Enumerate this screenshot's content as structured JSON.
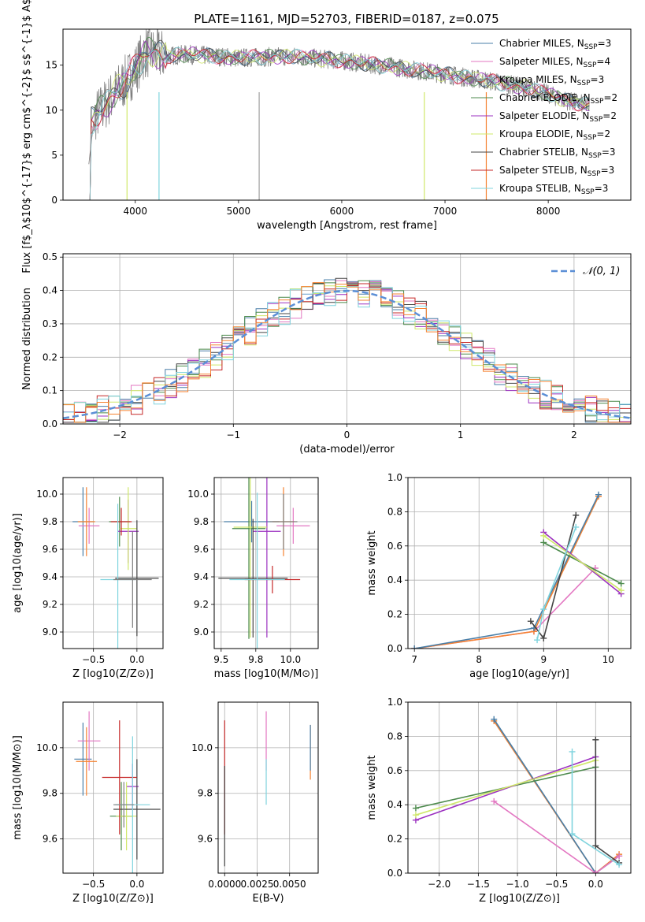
{
  "figure_title": "PLATE=1161, MJD=52703, FIBERID=0187, z=0.075",
  "colors": {
    "Chabrier MILES": "#4a7fa8",
    "Salpeter MILES": "#e377c2",
    "Kroupa MILES": "#7f7f7f",
    "Chabrier ELODIE": "#4c8a4c",
    "Salpeter ELODIE": "#9b30c0",
    "Kroupa ELODIE": "#cfe86a",
    "Chabrier STELIB": "#444444",
    "Salpeter STELIB": "#c62828",
    "Kroupa STELIB": "#80d4de",
    "gauss": "#5b8fd6",
    "orange": "#f58231"
  },
  "chart_data": [
    {
      "id": "spectrum",
      "type": "line",
      "title": "PLATE=1161, MJD=52703, FIBERID=0187, z=0.075",
      "xlabel": "wavelength [Angstrom, rest frame]",
      "ylabel": "Flux [f$_λ$10$^{-17}$ erg cm$^{-2}$ s$^{-1}$ A$^{-1}$]",
      "xlim": [
        3300,
        8800
      ],
      "ylim": [
        0,
        19
      ],
      "xticks": [
        4000,
        5000,
        6000,
        7000,
        8000
      ],
      "yticks": [
        0,
        5,
        10,
        15
      ],
      "legend": [
        {
          "name": "Chabrier MILES",
          "n": "3"
        },
        {
          "name": "Salpeter MILES",
          "n": "4"
        },
        {
          "name": "Kroupa MILES",
          "n": "3"
        },
        {
          "name": "Chabrier ELODIE",
          "n": "2"
        },
        {
          "name": "Salpeter ELODIE",
          "n": "2"
        },
        {
          "name": "Kroupa ELODIE",
          "n": "2"
        },
        {
          "name": "Chabrier STELIB",
          "n": "3"
        },
        {
          "name": "Salpeter STELIB",
          "n": "3"
        },
        {
          "name": "Kroupa STELIB",
          "n": "3"
        }
      ],
      "data_profile": {
        "x": [
          3550,
          3700,
          3850,
          4000,
          4100,
          4300,
          4500,
          5000,
          5500,
          6000,
          6500,
          7000,
          7400,
          7800,
          8200,
          8400
        ],
        "y": [
          8.5,
          10.5,
          12.5,
          14.5,
          16.5,
          16.0,
          16.2,
          15.8,
          16.0,
          15.5,
          14.8,
          14.0,
          13.3,
          12.5,
          11.0,
          10.5
        ]
      }
    },
    {
      "id": "residuals",
      "type": "line",
      "xlabel": "(data-model)/error",
      "ylabel": "Normed distribution",
      "xlim": [
        -2.5,
        2.5
      ],
      "ylim": [
        0,
        0.51
      ],
      "xticks": [
        -2,
        -1,
        0,
        1,
        2
      ],
      "yticks": [
        0.0,
        0.1,
        0.2,
        0.3,
        0.4,
        0.5
      ],
      "legend_label": "𝒩(0, 1)",
      "gauss_sigma": 1.0
    },
    {
      "id": "age_vs_Z",
      "type": "scatter",
      "xlabel": "Z [log10(Z/Z⊙)]",
      "ylabel": "age  [log10(age/yr)]",
      "xlim": [
        -0.85,
        0.3
      ],
      "ylim": [
        8.88,
        10.12
      ],
      "xticks": [
        -0.5,
        0.0
      ],
      "yticks": [
        9.0,
        9.2,
        9.4,
        9.6,
        9.8,
        10.0
      ],
      "points": [
        {
          "s": "Chabrier MILES",
          "x": -0.62,
          "y": 9.8,
          "xe": 0.12,
          "ye": 0.25
        },
        {
          "s": "Salpeter MILES",
          "x": -0.55,
          "y": 9.77,
          "xe": 0.12,
          "ye": 0.13
        },
        {
          "s": "orange",
          "x": -0.58,
          "y": 9.8,
          "xe": 0.1,
          "ye": 0.25
        },
        {
          "s": "Chabrier ELODIE",
          "x": -0.2,
          "y": 9.8,
          "xe": 0.12,
          "ye": 0.18
        },
        {
          "s": "Salpeter ELODIE",
          "x": -0.1,
          "y": 9.73,
          "xe": 0.12,
          "ye": 0.23
        },
        {
          "s": "Kroupa ELODIE",
          "x": -0.1,
          "y": 9.75,
          "xe": 0.1,
          "ye": 0.3
        },
        {
          "s": "Chabrier STELIB",
          "x": 0.0,
          "y": 9.39,
          "xe": 0.25,
          "ye": 0.42
        },
        {
          "s": "Salpeter STELIB",
          "x": -0.18,
          "y": 9.8,
          "xe": 0.12,
          "ye": 0.1
        },
        {
          "s": "Kroupa STELIB",
          "x": -0.22,
          "y": 9.38,
          "xe": 0.2,
          "ye": 0.55
        },
        {
          "s": "Kroupa MILES",
          "x": -0.05,
          "y": 9.38,
          "xe": 0.22,
          "ye": 0.35
        }
      ]
    },
    {
      "id": "age_vs_mass",
      "type": "scatter",
      "xlabel": "mass [log10(M/M⊙)]",
      "ylabel": "",
      "xlim": [
        9.45,
        10.2
      ],
      "ylim": [
        8.88,
        10.12
      ],
      "xticks": [
        9.5,
        9.75,
        10.0
      ],
      "yticks": [
        9.0,
        9.2,
        9.4,
        9.6,
        9.8,
        10.0
      ],
      "points": [
        {
          "s": "Chabrier MILES",
          "x": 9.72,
          "y": 9.8,
          "xe": 0.2,
          "ye": 0.15
        },
        {
          "s": "Salpeter MILES",
          "x": 10.02,
          "y": 9.77,
          "xe": 0.12,
          "ye": 0.13
        },
        {
          "s": "orange",
          "x": 9.95,
          "y": 9.8,
          "xe": 0.08,
          "ye": 0.25
        },
        {
          "s": "Chabrier ELODIE",
          "x": 9.7,
          "y": 9.75,
          "xe": 0.12,
          "ye": 0.8
        },
        {
          "s": "Salpeter ELODIE",
          "x": 9.83,
          "y": 9.73,
          "xe": 0.1,
          "ye": 0.77
        },
        {
          "s": "Kroupa ELODIE",
          "x": 9.71,
          "y": 9.76,
          "xe": 0.12,
          "ye": 0.8
        },
        {
          "s": "Chabrier STELIB",
          "x": 9.73,
          "y": 9.39,
          "xe": 0.25,
          "ye": 0.43
        },
        {
          "s": "Salpeter STELIB",
          "x": 9.87,
          "y": 9.38,
          "xe": 0.2,
          "ye": 0.1
        },
        {
          "s": "Kroupa STELIB",
          "x": 9.76,
          "y": 9.38,
          "xe": 0.2,
          "ye": 0.63
        },
        {
          "s": "Kroupa MILES",
          "x": 9.95,
          "y": 9.8,
          "xe": 0.1,
          "ye": 0.2
        }
      ]
    },
    {
      "id": "weight_vs_age",
      "type": "line",
      "xlabel": "age  [log10(age/yr)]",
      "ylabel": "mass weight",
      "xlim": [
        6.9,
        10.35
      ],
      "ylim": [
        0,
        1.0
      ],
      "xticks": [
        7,
        8,
        9,
        10
      ],
      "yticks": [
        0.0,
        0.2,
        0.4,
        0.6,
        0.8,
        1.0
      ],
      "series": [
        {
          "s": "Salpeter MILES",
          "x": [
            7.0,
            8.85,
            9.8
          ],
          "y": [
            0.0,
            0.1,
            0.47
          ]
        },
        {
          "s": "orange",
          "x": [
            7.0,
            8.85,
            9.85
          ],
          "y": [
            0.0,
            0.1,
            0.89
          ]
        },
        {
          "s": "Chabrier MILES",
          "x": [
            7.0,
            8.85,
            9.85
          ],
          "y": [
            0.0,
            0.12,
            0.9
          ]
        },
        {
          "s": "Chabrier ELODIE",
          "x": [
            9.0,
            10.2
          ],
          "y": [
            0.62,
            0.38
          ]
        },
        {
          "s": "Salpeter ELODIE",
          "x": [
            9.0,
            10.2
          ],
          "y": [
            0.68,
            0.32
          ]
        },
        {
          "s": "Kroupa ELODIE",
          "x": [
            9.0,
            10.2
          ],
          "y": [
            0.66,
            0.34
          ]
        },
        {
          "s": "Chabrier STELIB",
          "x": [
            8.8,
            9.0,
            9.5
          ],
          "y": [
            0.16,
            0.06,
            0.78
          ]
        },
        {
          "s": "Kroupa STELIB",
          "x": [
            8.9,
            9.0,
            9.5
          ],
          "y": [
            0.05,
            0.23,
            0.71
          ]
        }
      ]
    },
    {
      "id": "mass_vs_Z",
      "type": "scatter",
      "xlabel": "Z [log10(Z/Z⊙)]",
      "ylabel": "mass [log10(M/M⊙)]",
      "xlim": [
        -0.85,
        0.3
      ],
      "ylim": [
        9.45,
        10.2
      ],
      "xticks": [
        -0.5,
        0.0
      ],
      "yticks": [
        9.6,
        9.8,
        10.0
      ],
      "points": [
        {
          "s": "Chabrier MILES",
          "x": -0.62,
          "y": 9.95,
          "xe": 0.1,
          "ye": 0.16
        },
        {
          "s": "Salpeter MILES",
          "x": -0.55,
          "y": 10.03,
          "xe": 0.13,
          "ye": 0.13
        },
        {
          "s": "orange",
          "x": -0.58,
          "y": 9.94,
          "xe": 0.12,
          "ye": 0.15
        },
        {
          "s": "Chabrier ELODIE",
          "x": -0.18,
          "y": 9.7,
          "xe": 0.13,
          "ye": 0.15
        },
        {
          "s": "Salpeter ELODIE",
          "x": -0.05,
          "y": 9.83,
          "xe": 0.07,
          "ye": 0.1
        },
        {
          "s": "Kroupa ELODIE",
          "x": -0.12,
          "y": 9.7,
          "xe": 0.12,
          "ye": 0.15
        },
        {
          "s": "Chabrier STELIB",
          "x": 0.0,
          "y": 9.73,
          "xe": 0.27,
          "ye": 0.22
        },
        {
          "s": "Salpeter STELIB",
          "x": -0.2,
          "y": 9.87,
          "xe": 0.2,
          "ye": 0.25
        },
        {
          "s": "Kroupa STELIB",
          "x": -0.05,
          "y": 9.75,
          "xe": 0.2,
          "ye": 0.3
        },
        {
          "s": "Kroupa MILES",
          "x": -0.15,
          "y": 9.75,
          "xe": 0.12,
          "ye": 0.1
        }
      ]
    },
    {
      "id": "mass_vs_ebv",
      "type": "scatter",
      "xlabel": "E(B-V)",
      "ylabel": "",
      "xlim": [
        -0.0005,
        0.0072
      ],
      "ylim": [
        9.45,
        10.2
      ],
      "xticks": [
        0.0,
        0.0025,
        0.005
      ],
      "xticklabels": [
        "0.0000",
        "0.0025",
        "0.0050"
      ],
      "yticks": [
        9.6,
        9.8,
        10.0
      ],
      "points": [
        {
          "s": "Salpeter STELIB",
          "x": 0.0,
          "y": 9.87,
          "ye": 0.25
        },
        {
          "s": "Chabrier STELIB",
          "x": 0.0,
          "y": 9.7,
          "ye": 0.22
        },
        {
          "s": "Salpeter MILES",
          "x": 0.0032,
          "y": 10.03,
          "ye": 0.13
        },
        {
          "s": "Kroupa STELIB",
          "x": 0.0032,
          "y": 9.85,
          "ye": 0.1
        },
        {
          "s": "orange",
          "x": 0.0066,
          "y": 9.98,
          "ye": 0.12
        },
        {
          "s": "Chabrier MILES",
          "x": 0.0066,
          "y": 10.0,
          "ye": 0.1
        }
      ]
    },
    {
      "id": "weight_vs_Z",
      "type": "line",
      "xlabel": "Z [log10(Z/Z⊙)]",
      "ylabel": "mass weight",
      "xlim": [
        -2.4,
        0.45
      ],
      "ylim": [
        0,
        1.0
      ],
      "xticks": [
        -2.0,
        -1.5,
        -1.0,
        -0.5,
        0.0
      ],
      "yticks": [
        0.0,
        0.2,
        0.4,
        0.6,
        0.8,
        1.0
      ],
      "series": [
        {
          "s": "orange",
          "x": [
            -1.3,
            0.0,
            0.3
          ],
          "y": [
            0.89,
            0.0,
            0.11
          ]
        },
        {
          "s": "Chabrier MILES",
          "x": [
            -1.3,
            0.0,
            0.3
          ],
          "y": [
            0.9,
            0.0,
            0.1
          ]
        },
        {
          "s": "Salpeter MILES",
          "x": [
            -1.3,
            0.0,
            0.3
          ],
          "y": [
            0.42,
            0.0,
            0.1
          ]
        },
        {
          "s": "Chabrier ELODIE",
          "x": [
            -2.3,
            0.0
          ],
          "y": [
            0.38,
            0.62
          ]
        },
        {
          "s": "Salpeter ELODIE",
          "x": [
            -2.3,
            0.0
          ],
          "y": [
            0.31,
            0.68
          ]
        },
        {
          "s": "Kroupa ELODIE",
          "x": [
            -2.3,
            0.0
          ],
          "y": [
            0.34,
            0.66
          ]
        },
        {
          "s": "Chabrier STELIB",
          "x": [
            0.0,
            0.0,
            0.3
          ],
          "y": [
            0.78,
            0.16,
            0.06
          ]
        },
        {
          "s": "Kroupa STELIB",
          "x": [
            -0.3,
            -0.3,
            0.3
          ],
          "y": [
            0.71,
            0.23,
            0.05
          ]
        }
      ]
    }
  ]
}
